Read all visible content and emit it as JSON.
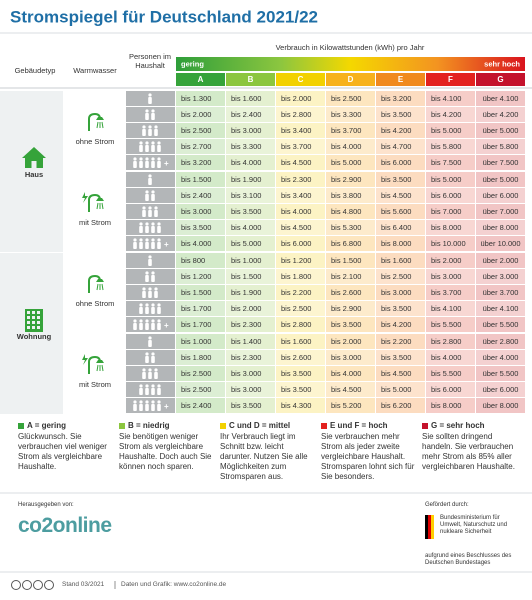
{
  "title": "Stromspiegel für Deutschland 2021/22",
  "header": {
    "building_type": "Gebäudetyp",
    "hot_water": "Warmwasser",
    "persons": "Personen im Haushalt",
    "consumption": "Verbrauch in Kilowattstunden (kWh) pro Jahr",
    "scale_low": "gering",
    "scale_high": "sehr hoch",
    "classes": [
      "A",
      "B",
      "C",
      "D",
      "E",
      "F",
      "G"
    ]
  },
  "person_plus": "+",
  "groups": [
    {
      "building": "Haus",
      "subgroups": [
        {
          "hot_water": "ohne Strom",
          "rows": [
            [
              "bis 1.300",
              "bis 1.600",
              "bis 2.000",
              "bis 2.500",
              "bis 3.200",
              "bis 4.100",
              "über 4.100"
            ],
            [
              "bis 2.000",
              "bis 2.400",
              "bis 2.800",
              "bis 3.300",
              "bis 3.500",
              "bis 4.200",
              "über 4.200"
            ],
            [
              "bis 2.500",
              "bis 3.000",
              "bis 3.400",
              "bis 3.700",
              "bis 4.200",
              "bis 5.000",
              "über 5.000"
            ],
            [
              "bis 2.700",
              "bis 3.300",
              "bis 3.700",
              "bis 4.000",
              "bis 4.700",
              "bis 5.800",
              "über 5.800"
            ],
            [
              "bis 3.200",
              "bis 4.000",
              "bis 4.500",
              "bis 5.000",
              "bis 6.000",
              "bis 7.500",
              "über 7.500"
            ]
          ]
        },
        {
          "hot_water": "mit Strom",
          "rows": [
            [
              "bis 1.500",
              "bis 1.900",
              "bis 2.300",
              "bis 2.900",
              "bis 3.500",
              "bis 5.000",
              "über 5.000"
            ],
            [
              "bis 2.400",
              "bis 3.100",
              "bis 3.400",
              "bis 3.800",
              "bis 4.500",
              "bis 6.000",
              "über 6.000"
            ],
            [
              "bis 3.000",
              "bis 3.500",
              "bis 4.000",
              "bis 4.800",
              "bis 5.600",
              "bis 7.000",
              "über 7.000"
            ],
            [
              "bis 3.500",
              "bis 4.000",
              "bis 4.500",
              "bis 5.300",
              "bis 6.400",
              "bis 8.000",
              "über 8.000"
            ],
            [
              "bis 4.000",
              "bis 5.000",
              "bis 6.000",
              "bis 6.800",
              "bis 8.000",
              "bis 10.000",
              "über 10.000"
            ]
          ]
        }
      ]
    },
    {
      "building": "Wohnung",
      "subgroups": [
        {
          "hot_water": "ohne Strom",
          "rows": [
            [
              "bis 800",
              "bis 1.000",
              "bis 1.200",
              "bis 1.500",
              "bis 1.600",
              "bis 2.000",
              "über 2.000"
            ],
            [
              "bis 1.200",
              "bis 1.500",
              "bis 1.800",
              "bis 2.100",
              "bis 2.500",
              "bis 3.000",
              "über 3.000"
            ],
            [
              "bis 1.500",
              "bis 1.900",
              "bis 2.200",
              "bis 2.600",
              "bis 3.000",
              "bis 3.700",
              "über 3.700"
            ],
            [
              "bis 1.700",
              "bis 2.000",
              "bis 2.500",
              "bis 2.900",
              "bis 3.500",
              "bis 4.100",
              "über 4.100"
            ],
            [
              "bis 1.700",
              "bis 2.300",
              "bis 2.800",
              "bis 3.500",
              "bis 4.200",
              "bis 5.500",
              "über 5.500"
            ]
          ]
        },
        {
          "hot_water": "mit Strom",
          "rows": [
            [
              "bis 1.000",
              "bis 1.400",
              "bis 1.600",
              "bis 2.000",
              "bis 2.200",
              "bis 2.800",
              "über 2.800"
            ],
            [
              "bis 1.800",
              "bis 2.300",
              "bis 2.600",
              "bis 3.000",
              "bis 3.500",
              "bis 4.000",
              "über 4.000"
            ],
            [
              "bis 2.500",
              "bis 3.000",
              "bis 3.500",
              "bis 4.000",
              "bis 4.500",
              "bis 5.500",
              "über 5.500"
            ],
            [
              "bis 2.500",
              "bis 3.000",
              "bis 3.500",
              "bis 4.500",
              "bis 5.000",
              "bis 6.000",
              "über 6.000"
            ],
            [
              "bis 2.400",
              "bis 3.500",
              "bis 4.300",
              "bis 5.200",
              "bis 6.200",
              "bis 8.000",
              "über 8.000"
            ]
          ]
        }
      ]
    }
  ],
  "legend": [
    {
      "label": "A = gering",
      "text": "Glückwunsch. Sie verbrauchen viel weniger Strom als vergleichbare Haushalte."
    },
    {
      "label": "B = niedrig",
      "text": "Sie benötigen weniger Strom als vergleichbare Haushalte. Doch auch Sie können noch sparen."
    },
    {
      "label": "C und D = mittel",
      "text": "Ihr Verbrauch liegt im Schnitt bzw. leicht darunter. Nutzen Sie alle Möglichkeiten zum Stromsparen aus."
    },
    {
      "label": "E und F = hoch",
      "text": "Sie verbrauchen mehr Strom als jeder zweite vergleichbare Haushalt. Stromsparen lohnt sich für Sie besonders."
    },
    {
      "label": "G = sehr hoch",
      "text": "Sie sollten dringend handeln. Sie verbrauchen mehr Strom als 85% aller vergleichbaren Haushalte."
    }
  ],
  "footer": {
    "published_by": "Herausgegeben von:",
    "publisher_logo": "co2online",
    "funded_by": "Gefördert durch:",
    "ministry": "Bundesministerium für Umwelt, Naturschutz und nukleare Sicherheit",
    "resolution": "aufgrund eines Beschlusses des Deutschen Bundestages",
    "status": "Stand 03/2021",
    "source": "Daten und Grafik: www.co2online.de"
  }
}
